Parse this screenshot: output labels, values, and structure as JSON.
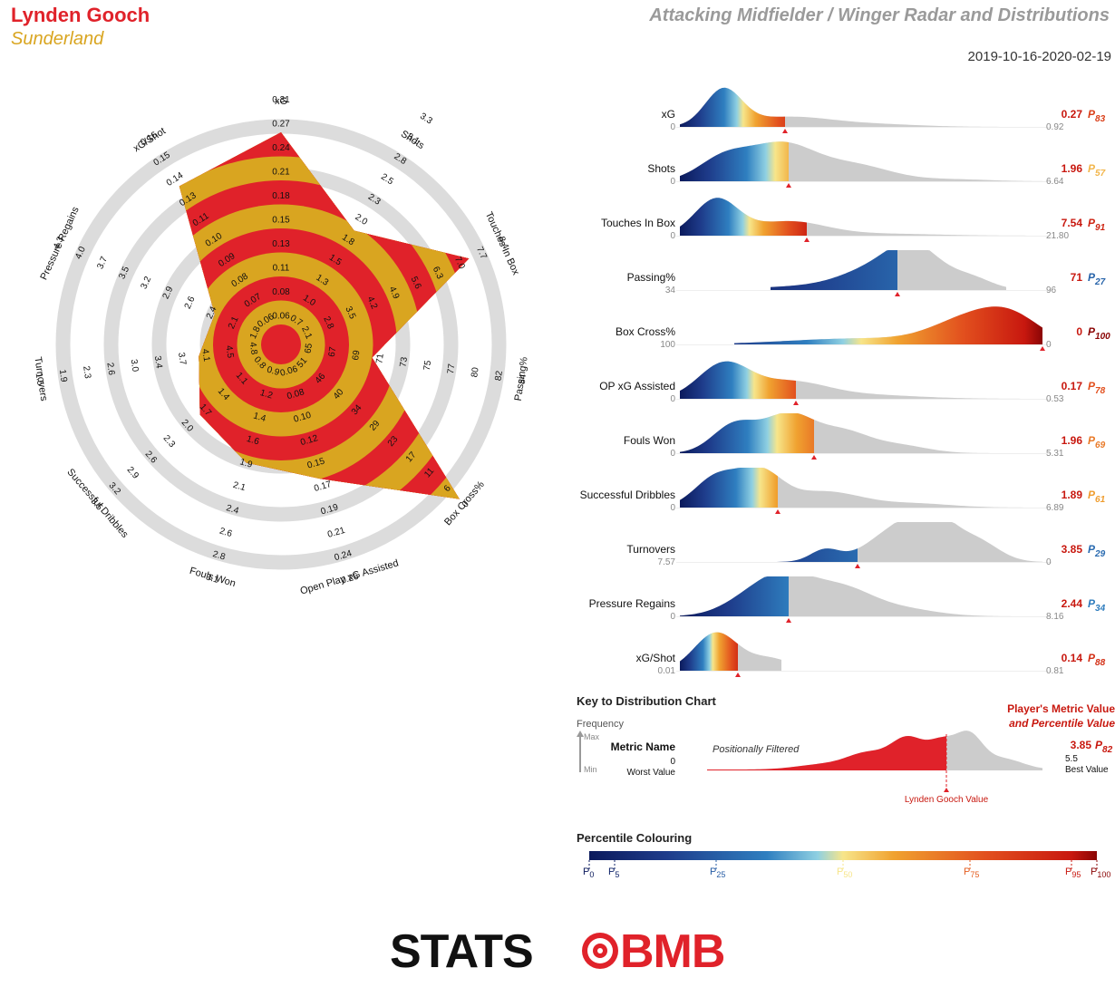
{
  "header": {
    "player": "Lynden Gooch",
    "team": "Sunderland",
    "title": "Attacking Midfielder / Winger Radar and Distributions",
    "date_range": "2019-10-16-2020-02-19"
  },
  "colors": {
    "red": "#e0222a",
    "gold": "#d9a520",
    "ring": "#dcdcdc",
    "grey": "#cccccc"
  },
  "chart_data": [
    {
      "type": "radar",
      "axes": [
        {
          "name": "xG",
          "ticks": [
            "0.06",
            "0.08",
            "0.11",
            "0.13",
            "0.15",
            "0.18",
            "0.21",
            "0.24",
            "0.27",
            "0.31",
            "0.34",
            "0.37"
          ],
          "value": 0.27
        },
        {
          "name": "Shots",
          "ticks": [
            "0.7",
            "1.0",
            "1.3",
            "1.5",
            "1.8",
            "2.0",
            "2.3",
            "2.5",
            "2.8",
            "3.1",
            "3.3"
          ],
          "value": 1.96
        },
        {
          "name": "Touches In Box",
          "ticks": [
            "2.1",
            "2.8",
            "3.5",
            "4.2",
            "4.9",
            "5.6",
            "6.3",
            "7.0",
            "7.7",
            "8.4"
          ],
          "value": 7.54
        },
        {
          "name": "Passing%",
          "ticks": [
            "65",
            "67",
            "69",
            "71",
            "73",
            "75",
            "77",
            "80",
            "82",
            "84"
          ],
          "value": 71
        },
        {
          "name": "Box Cross%",
          "ticks": [
            "51",
            "46",
            "40",
            "34",
            "29",
            "23",
            "17",
            "11",
            "6",
            "0"
          ],
          "value": 0
        },
        {
          "name": "Open Play xG Assisted",
          "ticks": [
            "0.06",
            "0.08",
            "0.10",
            "0.12",
            "0.15",
            "0.17",
            "0.19",
            "0.21",
            "0.24",
            "0.26"
          ],
          "value": 0.17
        },
        {
          "name": "Fouls Won",
          "ticks": [
            "0.9",
            "1.2",
            "1.4",
            "1.6",
            "1.9",
            "2.1",
            "2.4",
            "2.6",
            "2.8",
            "3.1"
          ],
          "value": 1.96
        },
        {
          "name": "Successful Dribbles",
          "ticks": [
            "0.8",
            "1.1",
            "1.4",
            "1.7",
            "2.0",
            "2.3",
            "2.6",
            "2.9",
            "3.2",
            "3.5"
          ],
          "value": 1.89
        },
        {
          "name": "Turnovers",
          "ticks": [
            "4.8",
            "4.5",
            "4.1",
            "3.7",
            "3.4",
            "3.0",
            "2.6",
            "2.3",
            "1.9",
            "1.5"
          ],
          "value": 3.85
        },
        {
          "name": "Pressure Regains",
          "ticks": [
            "1.8",
            "2.1",
            "2.4",
            "2.6",
            "2.9",
            "3.2",
            "3.5",
            "3.7",
            "4.0",
            "4.3"
          ],
          "value": 2.44
        },
        {
          "name": "xG/Shot",
          "ticks": [
            "0.06",
            "0.07",
            "0.08",
            "0.09",
            "0.10",
            "0.11",
            "0.13",
            "0.14",
            "0.15",
            "0.16"
          ],
          "value": 0.14
        }
      ]
    },
    {
      "type": "area",
      "rows": [
        {
          "label": "xG",
          "min": "0",
          "max": "0.92",
          "value": "0.27",
          "pct": 83,
          "ticks_reversed": false
        },
        {
          "label": "Shots",
          "min": "0",
          "max": "6.64",
          "value": "1.96",
          "pct": 57
        },
        {
          "label": "Touches In Box",
          "min": "0",
          "max": "21.80",
          "value": "7.54",
          "pct": 91
        },
        {
          "label": "Passing%",
          "min": "34",
          "max": "96",
          "value": "71",
          "pct": 27
        },
        {
          "label": "Box Cross%",
          "min": "100",
          "max": "0",
          "value": "0",
          "pct": 100
        },
        {
          "label": "OP xG Assisted",
          "min": "0",
          "max": "0.53",
          "value": "0.17",
          "pct": 78
        },
        {
          "label": "Fouls Won",
          "min": "0",
          "max": "5.31",
          "value": "1.96",
          "pct": 69
        },
        {
          "label": "Successful Dribbles",
          "min": "0",
          "max": "6.89",
          "value": "1.89",
          "pct": 61
        },
        {
          "label": "Turnovers",
          "min": "7.57",
          "max": "0",
          "value": "3.85",
          "pct": 29
        },
        {
          "label": "Pressure Regains",
          "min": "0",
          "max": "8.16",
          "value": "2.44",
          "pct": 34
        },
        {
          "label": "xG/Shot",
          "min": "0.01",
          "max": "0.81",
          "value": "0.14",
          "pct": 88
        }
      ]
    }
  ],
  "key": {
    "title": "Key to Distribution Chart",
    "frequency": "Frequency",
    "max": "Max",
    "min": "Min",
    "metric_name": "Metric Name",
    "filtered": "Positionally Filtered",
    "worst_num": "0",
    "worst": "Worst Value",
    "best_num": "5.5",
    "best": "Best Value",
    "player_value_line1": "Player's Metric Value",
    "player_value_line2": "and Percentile Value",
    "example_value": "3.85",
    "example_pct": "82",
    "player_marker": "Lynden Gooch Value"
  },
  "percentile": {
    "title": "Percentile Colouring",
    "marks": [
      "0",
      "5",
      "25",
      "50",
      "75",
      "95",
      "100"
    ]
  },
  "logo": {
    "left": "STATS",
    "right": "BMB"
  }
}
